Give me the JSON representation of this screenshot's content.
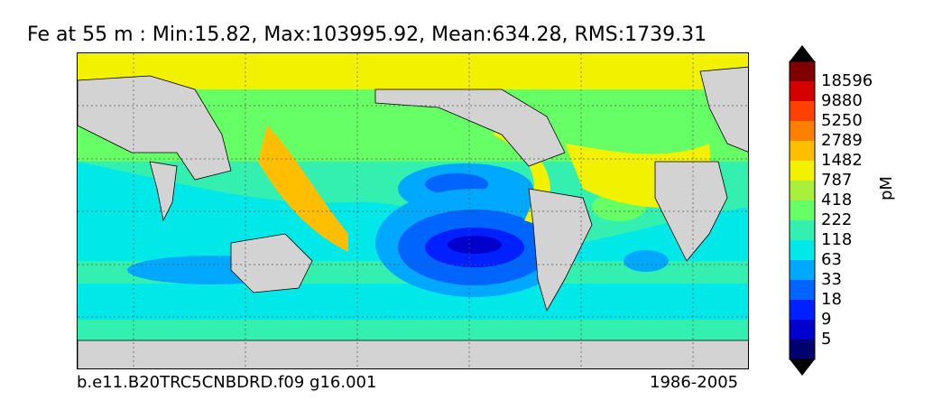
{
  "title": "Fe at 55 m : Min:15.82, Max:103995.92, Mean:634.28, RMS:1739.31",
  "footer": {
    "case_name": "b.e11.B20TRC5CNBDRD.f09 g16.001",
    "period": "1986-2005"
  },
  "colorbar": {
    "units": "pM",
    "labels": [
      "18596",
      "9880",
      "5250",
      "2789",
      "1482",
      "787",
      "418",
      "222",
      "118",
      "63",
      "33",
      "18",
      "9",
      "5"
    ],
    "colors": [
      "#000000",
      "#7f0000",
      "#d40000",
      "#ff4000",
      "#ff8000",
      "#ffbf00",
      "#f2f200",
      "#a8f03c",
      "#66ff66",
      "#33f0b0",
      "#00e8e8",
      "#00a8ff",
      "#0064ff",
      "#0020ff",
      "#0000cc",
      "#00006e",
      "#000000"
    ]
  },
  "map": {
    "land_color": "#d3d3d3",
    "projection_note": "global ocean, 0-360 longitude, Pacific-centered"
  }
}
